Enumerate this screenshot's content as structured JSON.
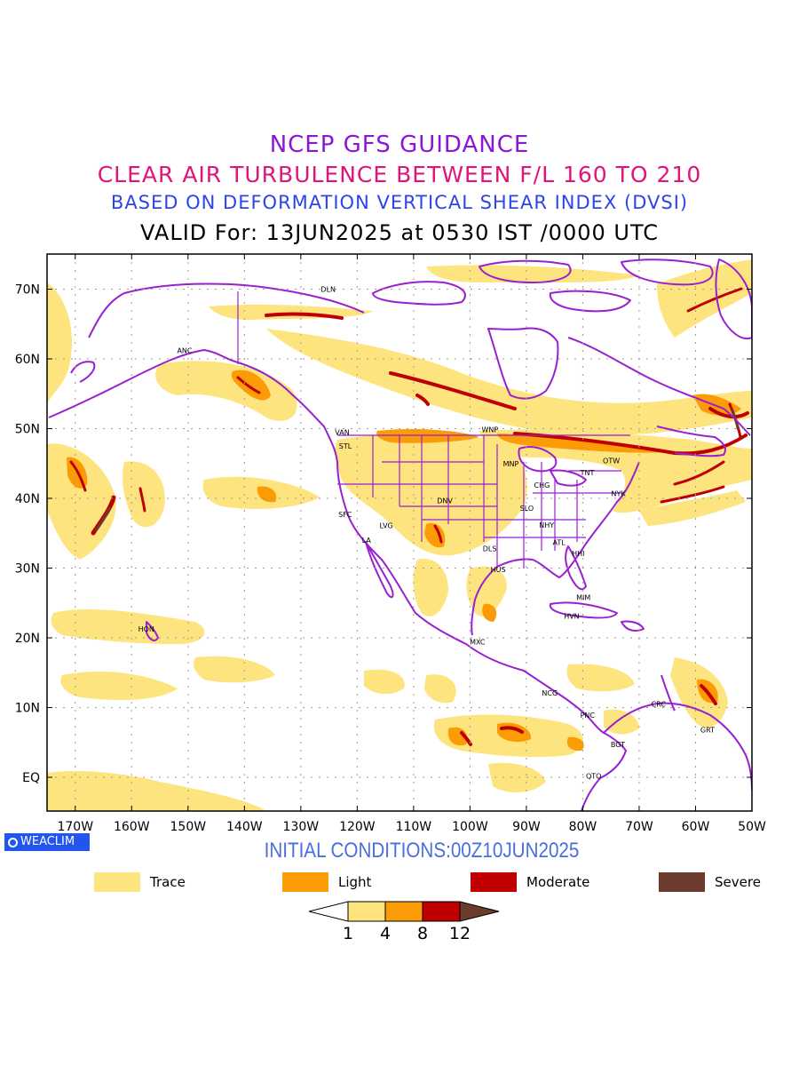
{
  "title": {
    "line1": "NCEP GFS GUIDANCE",
    "line2": "CLEAR AIR TURBULENCE BETWEEN F/L 160 TO 210",
    "line3": "BASED ON DEFORMATION VERTICAL SHEAR INDEX (DVSI)",
    "line4": "VALID For: 13JUN2025 at 0530 IST /0000 UTC"
  },
  "map": {
    "lat_labels": [
      "70N",
      "60N",
      "50N",
      "40N",
      "30N",
      "20N",
      "10N",
      "EQ"
    ],
    "lon_labels": [
      "170W",
      "160W",
      "150W",
      "140W",
      "130W",
      "120W",
      "110W",
      "100W",
      "90W",
      "80W",
      "70W",
      "60W",
      "50W"
    ],
    "stations": [
      {
        "code": "DLN"
      },
      {
        "code": "ANC"
      },
      {
        "code": "VAN"
      },
      {
        "code": "STL"
      },
      {
        "code": "WNP"
      },
      {
        "code": "MNP"
      },
      {
        "code": "TNT"
      },
      {
        "code": "OTW"
      },
      {
        "code": "CHG"
      },
      {
        "code": "NYK"
      },
      {
        "code": "DNV"
      },
      {
        "code": "SFC"
      },
      {
        "code": "LVG"
      },
      {
        "code": "SLO"
      },
      {
        "code": "LA"
      },
      {
        "code": "NHY"
      },
      {
        "code": "ATL"
      },
      {
        "code": "DLS"
      },
      {
        "code": "HHI"
      },
      {
        "code": "HUS"
      },
      {
        "code": "MIM"
      },
      {
        "code": "HVN"
      },
      {
        "code": "HON"
      },
      {
        "code": "MXC"
      },
      {
        "code": "NCG"
      },
      {
        "code": "CRC"
      },
      {
        "code": "PNC"
      },
      {
        "code": "GRT"
      },
      {
        "code": "BGT"
      },
      {
        "code": "QTO"
      }
    ]
  },
  "logo": {
    "text": "WEACLIM"
  },
  "initial_conditions": "INITIAL CONDITIONS:00Z10JUN2025",
  "legend": [
    {
      "label": "Trace",
      "color": "#fde47e"
    },
    {
      "label": "Light",
      "color": "#fb9b06"
    },
    {
      "label": "Moderate",
      "color": "#c00000"
    },
    {
      "label": "Severe",
      "color": "#6b3b2e"
    }
  ],
  "colorbar": {
    "ticks": [
      "1",
      "4",
      "8",
      "12"
    ],
    "colors": [
      "#ffffff",
      "#fde47e",
      "#fb9b06",
      "#c00000",
      "#6b3b2e"
    ]
  },
  "colors": {
    "coast": "#9a1fd0",
    "trace": "#fde47e",
    "light": "#fb9b06",
    "moderate": "#c00000",
    "severe": "#6b3b2e"
  }
}
